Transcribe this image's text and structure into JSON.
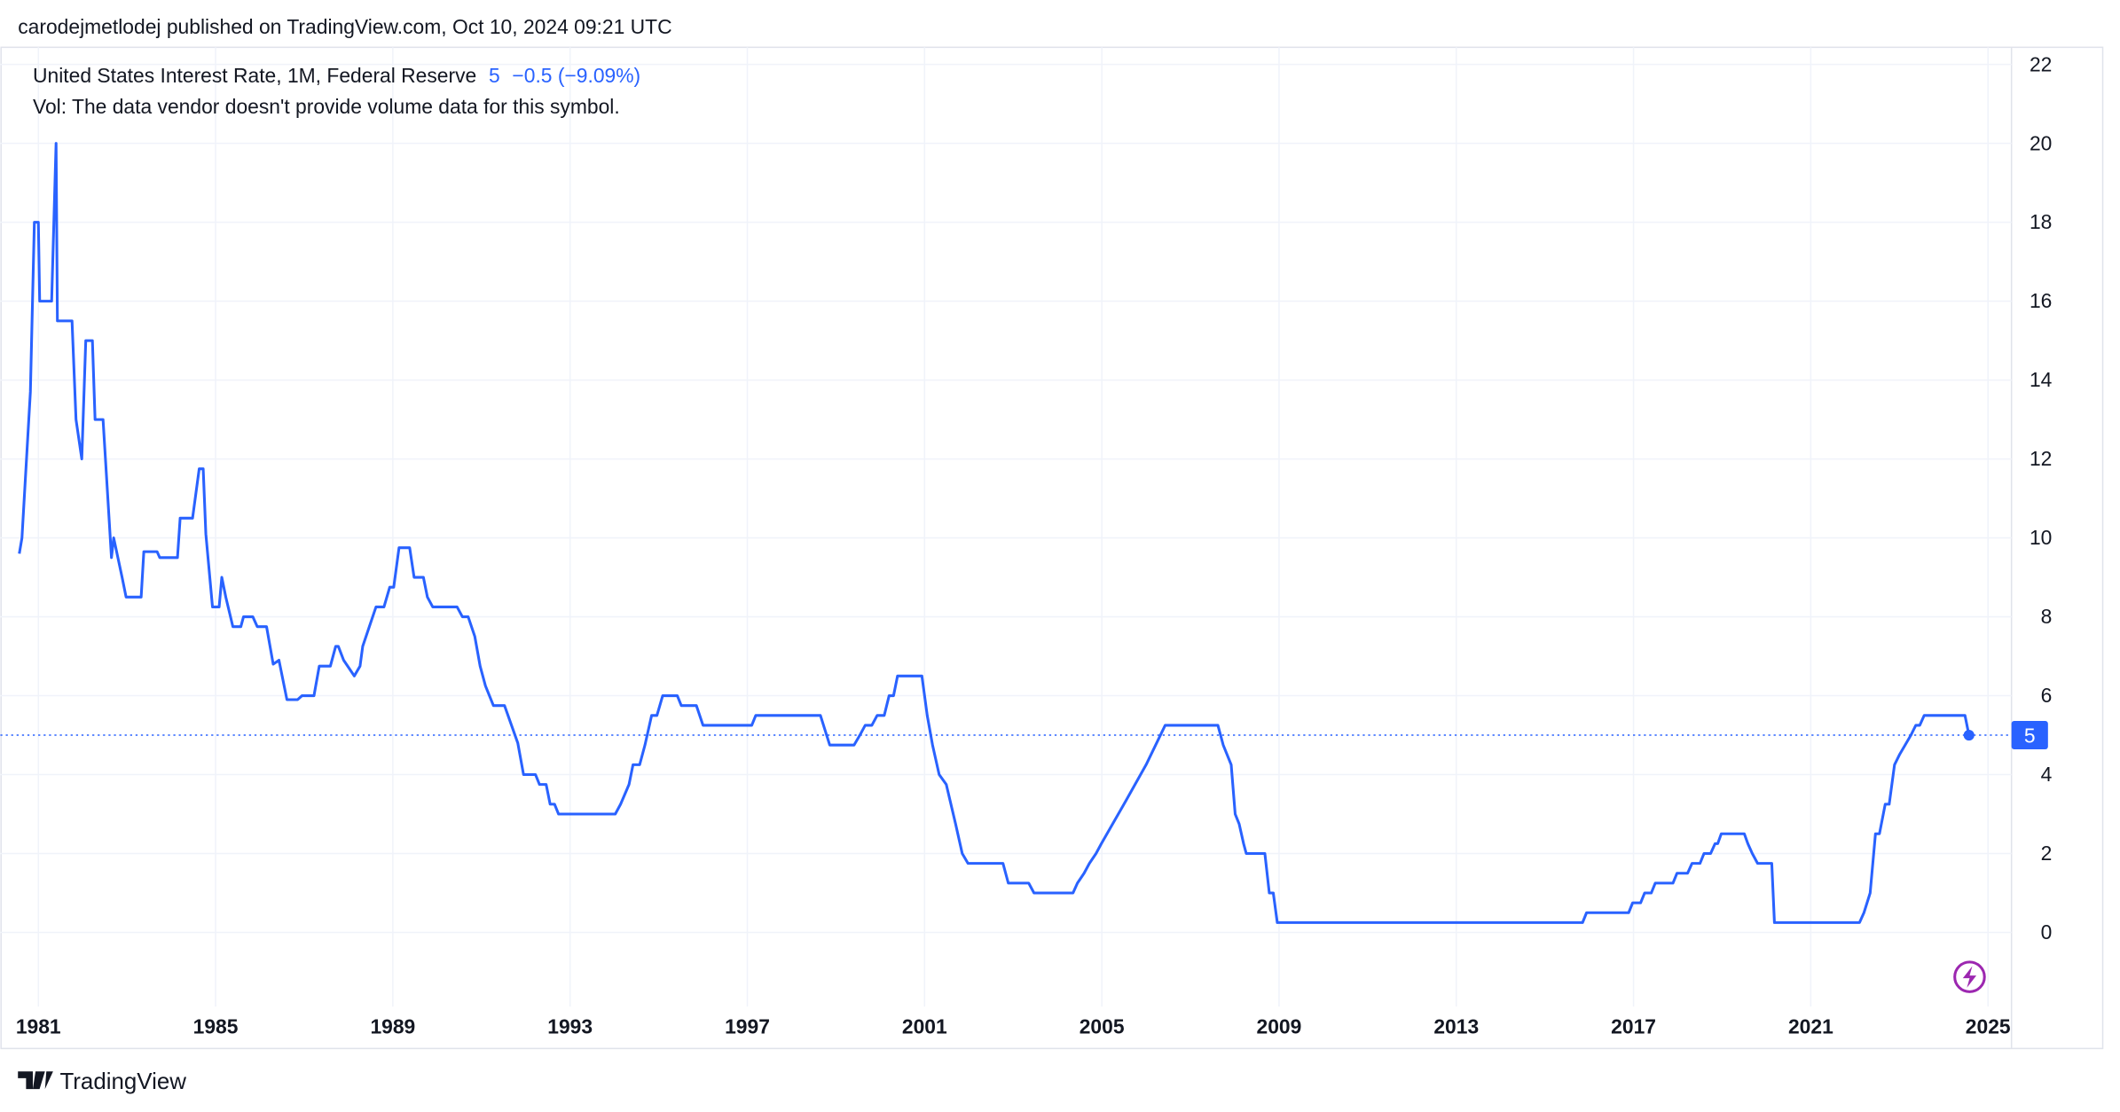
{
  "header": "carodejmetlodej published on TradingView.com, Oct 10, 2024 09:21 UTC",
  "footer": "TradingView",
  "chart_data": {
    "type": "line",
    "change": "−0.5 (−9.09%)",
    "subtitle": "Vol: The data vendor doesn't provide volume data for this symbol.",
    "x": [
      1980.57,
      1980.63,
      1980.82,
      1980.91,
      1981.0,
      1981.03,
      1981.3,
      1981.4,
      1981.43,
      1981.76,
      1981.85,
      1981.98,
      1982.07,
      1982.22,
      1982.28,
      1982.46,
      1982.65,
      1982.7,
      1982.89,
      1982.98,
      1983.32,
      1983.38,
      1983.68,
      1983.74,
      1984.14,
      1984.2,
      1984.48,
      1984.63,
      1984.72,
      1984.78,
      1984.93,
      1985.08,
      1985.14,
      1985.23,
      1985.39,
      1985.57,
      1985.63,
      1985.84,
      1985.94,
      1986.15,
      1986.3,
      1986.43,
      1986.61,
      1986.85,
      1986.95,
      1987.22,
      1987.34,
      1987.59,
      1987.71,
      1987.77,
      1987.89,
      1988.01,
      1988.13,
      1988.26,
      1988.32,
      1988.47,
      1988.62,
      1988.8,
      1988.93,
      1989.02,
      1989.14,
      1989.38,
      1989.48,
      1989.69,
      1989.78,
      1989.9,
      1990.45,
      1990.57,
      1990.7,
      1990.85,
      1990.97,
      1991.09,
      1991.27,
      1991.52,
      1991.82,
      1991.95,
      1992.22,
      1992.31,
      1992.46,
      1992.55,
      1992.65,
      1992.74,
      1994.02,
      1994.14,
      1994.33,
      1994.42,
      1994.57,
      1994.69,
      1994.84,
      1994.96,
      1995.09,
      1995.42,
      1995.51,
      1995.85,
      1996.0,
      1997.1,
      1997.19,
      1998.65,
      1998.86,
      1999.41,
      1999.54,
      1999.66,
      1999.81,
      1999.93,
      2000.09,
      2000.2,
      2000.3,
      2000.39,
      2000.94,
      2001.06,
      2001.18,
      2001.33,
      2001.49,
      2001.7,
      2001.85,
      2001.98,
      2002.77,
      2002.89,
      2003.35,
      2003.47,
      2004.35,
      2004.45,
      2004.6,
      2004.72,
      2004.87,
      2004.99,
      2005.5,
      2006.0,
      2006.43,
      2007.62,
      2007.74,
      2007.83,
      2007.92,
      2008.01,
      2008.1,
      2008.2,
      2008.26,
      2008.68,
      2008.78,
      2008.87,
      2008.96,
      2015.85,
      2015.94,
      2016.89,
      2016.98,
      2017.16,
      2017.25,
      2017.4,
      2017.49,
      2017.89,
      2017.98,
      2018.22,
      2018.32,
      2018.5,
      2018.59,
      2018.74,
      2018.84,
      2018.9,
      2018.98,
      2019.5,
      2019.58,
      2019.68,
      2019.8,
      2020.12,
      2020.18,
      2022.1,
      2022.2,
      2022.34,
      2022.46,
      2022.55,
      2022.68,
      2022.77,
      2022.89,
      2023.0,
      2023.13,
      2023.26,
      2023.37,
      2023.46,
      2023.56,
      2024.48,
      2024.57
    ],
    "series": [
      {
        "name": "United States Interest Rate, 1M, Federal Reserve",
        "color": "#2962ff",
        "values": [
          9.6,
          10,
          13.7,
          18,
          18,
          16,
          16,
          20,
          15.5,
          15.5,
          13,
          12,
          15,
          15,
          13,
          13,
          9.5,
          10,
          9,
          8.5,
          8.5,
          9.65,
          9.65,
          9.5,
          9.5,
          10.5,
          10.5,
          11.75,
          11.75,
          10.1,
          8.25,
          8.25,
          9,
          8.5,
          7.75,
          7.75,
          8,
          8,
          7.75,
          7.75,
          6.8,
          6.9,
          5.9,
          5.9,
          6,
          6,
          6.75,
          6.75,
          7.25,
          7.25,
          6.9,
          6.7,
          6.5,
          6.75,
          7.25,
          7.75,
          8.25,
          8.25,
          8.75,
          8.75,
          9.75,
          9.75,
          9,
          9,
          8.5,
          8.25,
          8.25,
          8,
          8,
          7.5,
          6.75,
          6.25,
          5.75,
          5.75,
          4.8,
          4,
          4,
          3.75,
          3.75,
          3.25,
          3.25,
          3,
          3,
          3.25,
          3.75,
          4.25,
          4.25,
          4.75,
          5.5,
          5.5,
          6,
          6,
          5.75,
          5.75,
          5.25,
          5.25,
          5.5,
          5.5,
          4.75,
          4.75,
          5,
          5.25,
          5.25,
          5.5,
          5.5,
          6,
          6,
          6.5,
          6.5,
          5.5,
          4.75,
          4,
          3.75,
          2.75,
          2,
          1.75,
          1.75,
          1.25,
          1.25,
          1,
          1,
          1.25,
          1.5,
          1.75,
          2,
          2.25,
          3.25,
          4.25,
          5.25,
          5.25,
          4.75,
          4.5,
          4.25,
          3,
          2.75,
          2.25,
          2,
          2,
          1,
          1,
          0.25,
          0.25,
          0.5,
          0.5,
          0.75,
          0.75,
          1,
          1,
          1.25,
          1.25,
          1.5,
          1.5,
          1.75,
          1.75,
          2,
          2,
          2.25,
          2.25,
          2.5,
          2.5,
          2.25,
          2,
          1.75,
          1.75,
          0.25,
          0.25,
          0.5,
          1,
          2.5,
          2.5,
          3.25,
          3.25,
          4.25,
          4.5,
          4.75,
          5,
          5.25,
          5.25,
          5.5,
          5.5,
          5
        ]
      }
    ],
    "xlim": [
      1980.57,
      2025.53
    ],
    "xticks": [
      1981,
      1985,
      1989,
      1993,
      1997,
      2001,
      2005,
      2009,
      2013,
      2017,
      2021,
      2025
    ],
    "ylim": [
      -1.88,
      22.4
    ],
    "yticks": [
      0,
      2,
      4,
      6,
      8,
      10,
      12,
      14,
      16,
      18,
      20,
      22
    ],
    "grid": true
  }
}
